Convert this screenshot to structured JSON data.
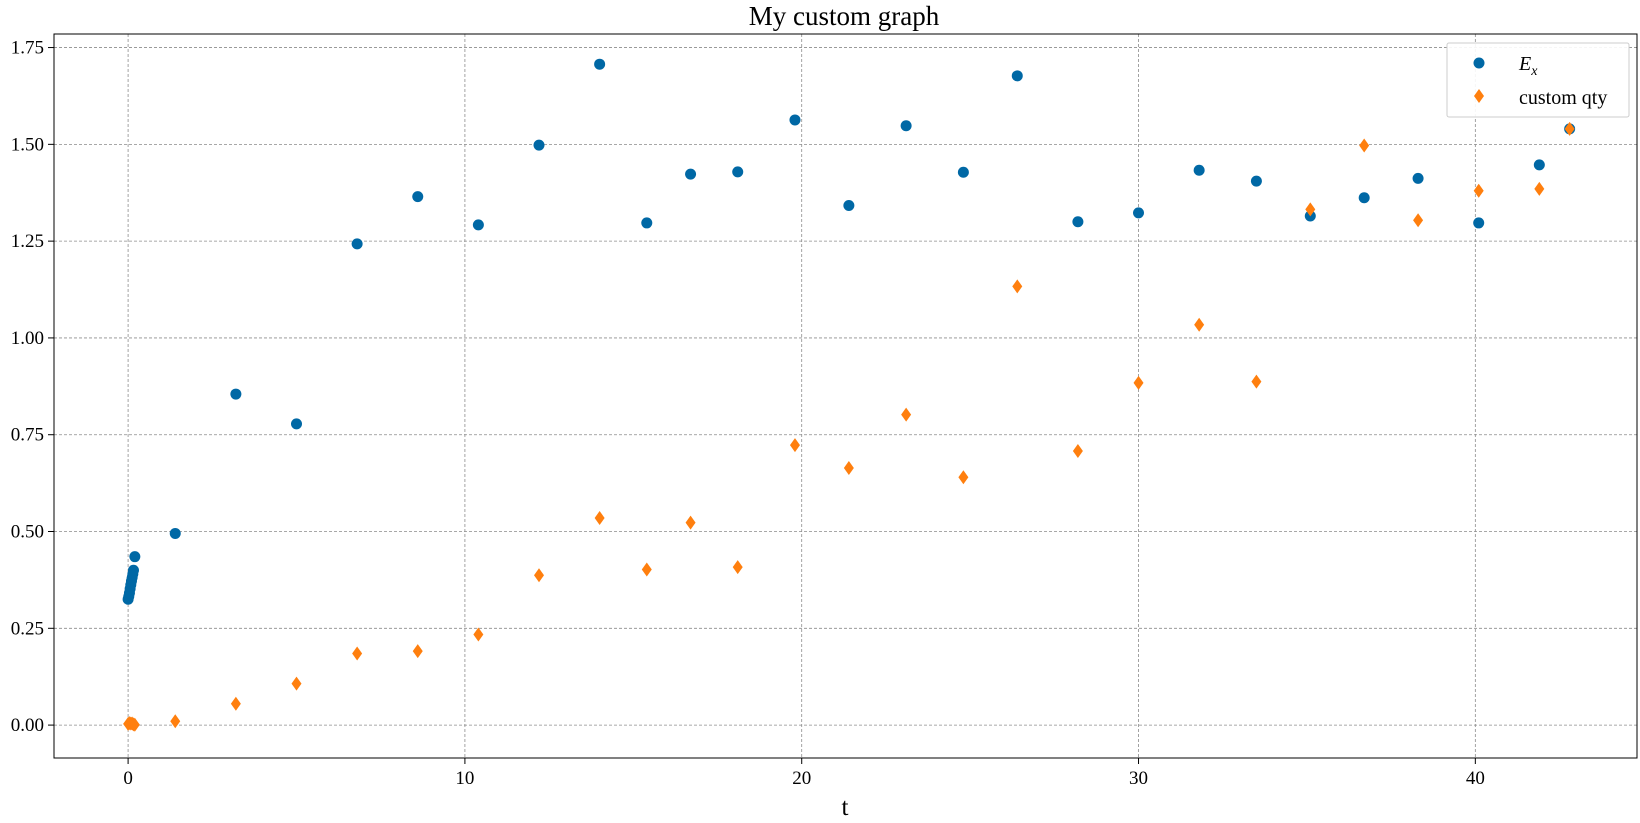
{
  "chart_data": {
    "type": "scatter",
    "title": "My custom graph",
    "xlabel": "t",
    "ylabel": "",
    "xlim": [
      -2.2,
      44.8
    ],
    "ylim": [
      -0.085,
      1.785
    ],
    "xticks": [
      0,
      10,
      20,
      30,
      40
    ],
    "yticks": [
      0.0,
      0.25,
      0.5,
      0.75,
      1.0,
      1.25,
      1.5,
      1.75
    ],
    "xtick_labels": [
      "0",
      "10",
      "20",
      "30",
      "40"
    ],
    "ytick_labels": [
      "0.00",
      "0.25",
      "0.50",
      "0.75",
      "1.00",
      "1.25",
      "1.50",
      "1.75"
    ],
    "grid": true,
    "legend": {
      "placement": "top-right",
      "entries": [
        {
          "label_main": "E",
          "label_sub": "x"
        },
        {
          "label_main": "custom qty"
        }
      ]
    },
    "series": [
      {
        "marker": "circle",
        "color": "#0068a5",
        "x": [
          0.0,
          0.02,
          0.04,
          0.06,
          0.08,
          0.1,
          0.12,
          0.14,
          0.16,
          0.2,
          1.4,
          3.2,
          5.0,
          6.8,
          8.6,
          10.4,
          12.2,
          14.0,
          15.4,
          16.7,
          18.1,
          19.8,
          21.4,
          23.1,
          24.8,
          26.4,
          28.2,
          30.0,
          31.8,
          33.5,
          35.1,
          36.7,
          38.3,
          40.1,
          41.9,
          42.8
        ],
        "y": [
          0.325,
          0.332,
          0.341,
          0.352,
          0.362,
          0.372,
          0.381,
          0.39,
          0.4,
          0.435,
          0.495,
          0.855,
          0.778,
          1.243,
          1.365,
          1.292,
          1.498,
          1.707,
          1.297,
          1.423,
          1.429,
          1.563,
          1.342,
          1.548,
          1.428,
          1.677,
          1.3,
          1.323,
          1.433,
          1.405,
          1.315,
          1.362,
          1.412,
          1.297,
          1.447,
          1.54
        ]
      },
      {
        "marker": "diamond",
        "color": "#ff7f0e",
        "x": [
          0.0,
          0.04,
          0.08,
          0.12,
          0.16,
          0.2,
          1.4,
          3.2,
          5.0,
          6.8,
          8.6,
          10.4,
          12.2,
          14.0,
          15.4,
          16.7,
          18.1,
          19.8,
          21.4,
          23.1,
          24.8,
          26.4,
          28.2,
          30.0,
          31.8,
          33.5,
          35.1,
          36.7,
          38.3,
          40.1,
          41.9,
          42.8
        ],
        "y": [
          0.003,
          0.005,
          0.004,
          0.004,
          0.002,
          0.001,
          0.01,
          0.055,
          0.107,
          0.185,
          0.191,
          0.234,
          0.387,
          0.535,
          0.402,
          0.523,
          0.408,
          0.723,
          0.664,
          0.802,
          0.64,
          1.133,
          0.708,
          0.884,
          1.034,
          0.887,
          1.332,
          1.497,
          1.304,
          1.38,
          1.385,
          1.54
        ]
      }
    ]
  }
}
